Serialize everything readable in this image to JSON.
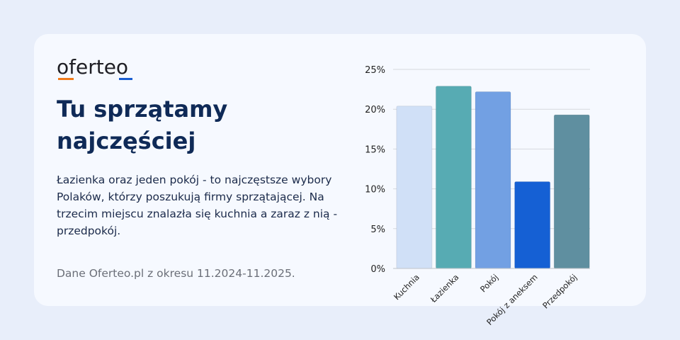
{
  "logo": "oferteo",
  "title": "Tu sprzątamy najczęściej",
  "description": "Łazienka oraz jeden pokój - to najczęstsze wybory Polaków, którzy poszukują firmy sprzątającej. Na trzecim miejscu znalazła się kuchnia a zaraz z nią - przedpokój.",
  "source": "Dane Oferteo.pl z okresu 11.2024-11.2025.",
  "chart_data": {
    "type": "bar",
    "categories": [
      "Kuchnia",
      "Łazienka",
      "Pokój",
      "Pokój z aneksem",
      "Przedpokój"
    ],
    "values": [
      20.4,
      22.9,
      22.2,
      10.9,
      19.3
    ],
    "colors": [
      "#d0e0f7",
      "#57abb3",
      "#72a0e3",
      "#1560d4",
      "#5f8fa0"
    ],
    "ylim": [
      0,
      25
    ],
    "yticks": [
      "0%",
      "5%",
      "10%",
      "15%",
      "20%",
      "25%"
    ],
    "grid": true,
    "title": "",
    "xlabel": "",
    "ylabel": ""
  }
}
